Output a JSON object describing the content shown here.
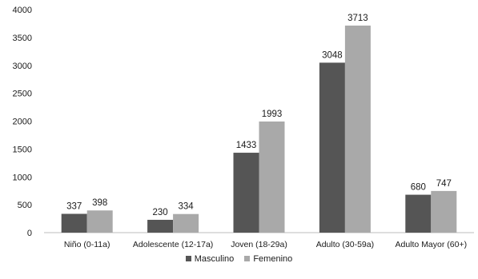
{
  "chart_data": {
    "type": "bar",
    "categories": [
      "Niño (0-11a)",
      "Adolescente (12-17a)",
      "Joven (18-29a)",
      "Adulto (30-59a)",
      "Adulto Mayor (60+)"
    ],
    "series": [
      {
        "name": "Masculino",
        "values": [
          337,
          230,
          1433,
          3048,
          680
        ],
        "color": "#555555"
      },
      {
        "name": "Femenino",
        "values": [
          398,
          334,
          1993,
          3713,
          747
        ],
        "color": "#a9a9a9"
      }
    ],
    "data_labels": [
      [
        "337",
        "230",
        "1433",
        "3048",
        "680"
      ],
      [
        "398",
        "334",
        "1993",
        "3713",
        "747"
      ]
    ],
    "y_ticks": [
      0,
      500,
      1000,
      1500,
      2000,
      2500,
      3000,
      3500,
      4000
    ],
    "y_tick_labels": [
      "0",
      "500",
      "1000",
      "1500",
      "2000",
      "2500",
      "3000",
      "3500",
      "4000"
    ],
    "ylim": [
      0,
      4000
    ],
    "grid": false,
    "legend_position": "bottom"
  }
}
